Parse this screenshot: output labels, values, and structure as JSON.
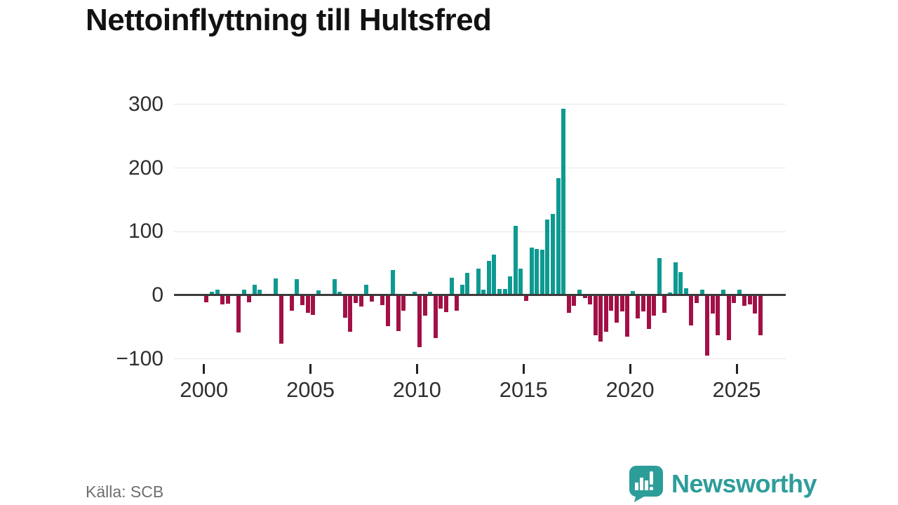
{
  "title": "Nettoinflyttning till Hultsfred",
  "source_label": "Källa: SCB",
  "branding": {
    "name": "Newsworthy",
    "icon": "newsworthy-speech-bubble-bar-chart-icon"
  },
  "colors": {
    "positive_bar": "#0d9a92",
    "negative_bar": "#a21046",
    "brand_teal": "#2d9d9a",
    "zero_line": "#3b3b3b",
    "gridline": "#e7e7e7",
    "axis_text": "#2f2f2f",
    "title_text": "#121212",
    "source_text": "#6e6e6e"
  },
  "y_axis": {
    "ticks": [
      {
        "label": "300",
        "value": 300
      },
      {
        "label": "200",
        "value": 200
      },
      {
        "label": "100",
        "value": 100
      },
      {
        "label": "0",
        "value": 0
      },
      {
        "label": "−100",
        "value": -100
      }
    ]
  },
  "x_axis": {
    "ticks": [
      {
        "label": "2000",
        "year": 2000
      },
      {
        "label": "2005",
        "year": 2005
      },
      {
        "label": "2010",
        "year": 2010
      },
      {
        "label": "2015",
        "year": 2015
      },
      {
        "label": "2020",
        "year": 2020
      },
      {
        "label": "2025",
        "year": 2025
      }
    ]
  },
  "chart_data": {
    "type": "bar",
    "title": "Nettoinflyttning till Hultsfred",
    "xlabel": "",
    "ylabel": "",
    "ylim": [
      -100,
      300
    ],
    "grid": "horizontal",
    "legend": "none",
    "frequency": "quarterly",
    "x": [
      "2000Q1",
      "2000Q2",
      "2000Q3",
      "2000Q4",
      "2001Q1",
      "2001Q2",
      "2001Q3",
      "2001Q4",
      "2002Q1",
      "2002Q2",
      "2002Q3",
      "2002Q4",
      "2003Q1",
      "2003Q2",
      "2003Q3",
      "2003Q4",
      "2004Q1",
      "2004Q2",
      "2004Q3",
      "2004Q4",
      "2005Q1",
      "2005Q2",
      "2005Q3",
      "2005Q4",
      "2006Q1",
      "2006Q2",
      "2006Q3",
      "2006Q4",
      "2007Q1",
      "2007Q2",
      "2007Q3",
      "2007Q4",
      "2008Q1",
      "2008Q2",
      "2008Q3",
      "2008Q4",
      "2009Q1",
      "2009Q2",
      "2009Q3",
      "2009Q4",
      "2010Q1",
      "2010Q2",
      "2010Q3",
      "2010Q4",
      "2011Q1",
      "2011Q2",
      "2011Q3",
      "2011Q4",
      "2012Q1",
      "2012Q2",
      "2012Q3",
      "2012Q4",
      "2013Q1",
      "2013Q2",
      "2013Q3",
      "2013Q4",
      "2014Q1",
      "2014Q2",
      "2014Q3",
      "2014Q4",
      "2015Q1",
      "2015Q2",
      "2015Q3",
      "2015Q4",
      "2016Q1",
      "2016Q2",
      "2016Q3",
      "2016Q4",
      "2017Q1",
      "2017Q2",
      "2017Q3",
      "2017Q4",
      "2018Q1",
      "2018Q2",
      "2018Q3",
      "2018Q4",
      "2019Q1",
      "2019Q2",
      "2019Q3",
      "2019Q4",
      "2020Q1",
      "2020Q2",
      "2020Q3",
      "2020Q4",
      "2021Q1",
      "2021Q2",
      "2021Q3",
      "2021Q4",
      "2022Q1",
      "2022Q2",
      "2022Q3",
      "2022Q4",
      "2023Q1",
      "2023Q2",
      "2023Q3",
      "2023Q4",
      "2024Q1",
      "2024Q2",
      "2024Q3",
      "2024Q4",
      "2025Q1",
      "2025Q2",
      "2025Q3",
      "2025Q4",
      "2026Q1"
    ],
    "values": [
      -11,
      6,
      9,
      -14,
      -13,
      0,
      -58,
      9,
      -11,
      16,
      9,
      0,
      0,
      26,
      -76,
      0,
      -24,
      25,
      -15,
      -27,
      -31,
      8,
      0,
      0,
      25,
      6,
      -35,
      -57,
      -12,
      -18,
      16,
      -10,
      0,
      -15,
      -48,
      40,
      -56,
      -24,
      0,
      6,
      -82,
      -32,
      5,
      -67,
      -21,
      -26,
      27,
      -24,
      16,
      35,
      0,
      42,
      9,
      54,
      64,
      10,
      10,
      30,
      109,
      42,
      -9,
      75,
      73,
      72,
      119,
      128,
      184,
      293,
      -27,
      -16,
      9,
      -4,
      -14,
      -63,
      -73,
      -57,
      -24,
      -43,
      -25,
      -65,
      7,
      -36,
      -25,
      -53,
      -32,
      58,
      -27,
      4,
      52,
      36,
      11,
      -47,
      -12,
      9,
      -95,
      -29,
      -63,
      9,
      -71,
      -12,
      9,
      -16,
      -14,
      -29,
      -63
    ]
  }
}
